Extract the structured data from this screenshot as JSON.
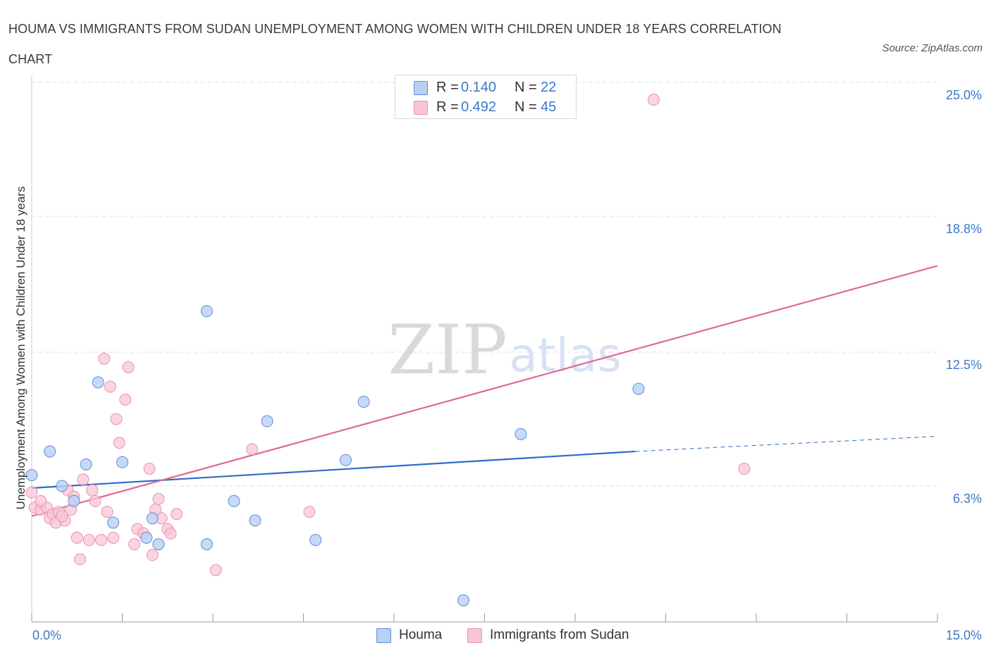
{
  "title": "HOUMA VS IMMIGRANTS FROM SUDAN UNEMPLOYMENT AMONG WOMEN WITH CHILDREN UNDER 18 YEARS CORRELATION CHART",
  "source": "Source: ZipAtlas.com",
  "watermark": {
    "zip": "ZIP",
    "atlas": "atlas"
  },
  "legend": {
    "r_label": "R =",
    "n_label": "N =",
    "series": [
      {
        "name": "Houma",
        "r": "0.140",
        "n": "22"
      },
      {
        "name": "Immigrants from Sudan",
        "r": "0.492",
        "n": "45"
      }
    ]
  },
  "colors": {
    "houma_fill": "#b9d0f5",
    "houma_stroke": "#5b8fd6",
    "houma_line": "#2f6cc9",
    "sudan_fill": "#f9c5d6",
    "sudan_stroke": "#e793b0",
    "sudan_line": "#e06896",
    "accent_text": "#3b78c8",
    "grid": "#dddddd"
  },
  "chart_data": {
    "type": "scatter",
    "title": "HOUMA VS IMMIGRANTS FROM SUDAN UNEMPLOYMENT AMONG WOMEN WITH CHILDREN UNDER 18 YEARS CORRELATION CHART",
    "xlabel": "",
    "ylabel": "Unemployment Among Women with Children Under 18 years",
    "xlim": [
      0,
      15
    ],
    "ylim": [
      0,
      25.0
    ],
    "x_tick_labels": [
      "0.0%",
      "15.0%"
    ],
    "y_ticks": [
      6.3,
      12.5,
      18.8,
      25.0
    ],
    "y_tick_labels": [
      "6.3%",
      "12.5%",
      "18.8%",
      "25.0%"
    ],
    "grid": true,
    "series": [
      {
        "name": "Houma",
        "r": 0.14,
        "n": 22,
        "points": [
          [
            0.0,
            6.8
          ],
          [
            0.3,
            7.9
          ],
          [
            0.5,
            6.3
          ],
          [
            0.7,
            5.6
          ],
          [
            0.9,
            7.3
          ],
          [
            1.1,
            11.1
          ],
          [
            1.35,
            4.6
          ],
          [
            1.5,
            7.4
          ],
          [
            1.9,
            3.9
          ],
          [
            2.0,
            4.8
          ],
          [
            2.1,
            3.6
          ],
          [
            2.9,
            14.4
          ],
          [
            2.9,
            3.6
          ],
          [
            3.35,
            5.6
          ],
          [
            3.7,
            4.7
          ],
          [
            3.9,
            9.3
          ],
          [
            4.7,
            3.8
          ],
          [
            5.2,
            7.5
          ],
          [
            5.5,
            10.2
          ],
          [
            7.15,
            1.0
          ],
          [
            8.1,
            8.7
          ],
          [
            10.05,
            10.8
          ]
        ],
        "trend": {
          "x0": 0.0,
          "y0": 6.2,
          "x1": 10.0,
          "y1": 7.9,
          "dashed_to_x": 15.0,
          "dashed_to_y": 8.6
        }
      },
      {
        "name": "Immigrants from Sudan",
        "r": 0.492,
        "n": 45,
        "points": [
          [
            0.0,
            6.0
          ],
          [
            0.05,
            5.3
          ],
          [
            0.15,
            5.2
          ],
          [
            0.25,
            5.3
          ],
          [
            0.3,
            4.8
          ],
          [
            0.35,
            5.0
          ],
          [
            0.4,
            4.6
          ],
          [
            0.45,
            5.1
          ],
          [
            0.55,
            4.7
          ],
          [
            0.6,
            6.1
          ],
          [
            0.7,
            5.8
          ],
          [
            0.75,
            3.9
          ],
          [
            0.8,
            2.9
          ],
          [
            0.85,
            6.6
          ],
          [
            0.95,
            3.8
          ],
          [
            1.0,
            6.1
          ],
          [
            1.05,
            5.6
          ],
          [
            1.15,
            3.8
          ],
          [
            1.2,
            12.2
          ],
          [
            1.25,
            5.1
          ],
          [
            1.3,
            10.9
          ],
          [
            1.35,
            3.9
          ],
          [
            1.4,
            9.4
          ],
          [
            1.45,
            8.3
          ],
          [
            1.55,
            10.3
          ],
          [
            1.6,
            11.8
          ],
          [
            1.7,
            3.6
          ],
          [
            1.75,
            4.3
          ],
          [
            1.85,
            4.1
          ],
          [
            1.95,
            7.1
          ],
          [
            2.0,
            3.1
          ],
          [
            2.05,
            5.2
          ],
          [
            2.1,
            5.7
          ],
          [
            2.15,
            4.8
          ],
          [
            2.25,
            4.3
          ],
          [
            2.3,
            4.1
          ],
          [
            2.4,
            5.0
          ],
          [
            3.05,
            2.4
          ],
          [
            3.65,
            8.0
          ],
          [
            4.6,
            5.1
          ],
          [
            10.3,
            24.2
          ],
          [
            11.8,
            7.1
          ],
          [
            0.15,
            5.6
          ],
          [
            0.5,
            4.9
          ],
          [
            0.65,
            5.2
          ]
        ],
        "trend": {
          "x0": 0.0,
          "y0": 4.9,
          "x1": 15.0,
          "y1": 16.5
        }
      }
    ]
  }
}
